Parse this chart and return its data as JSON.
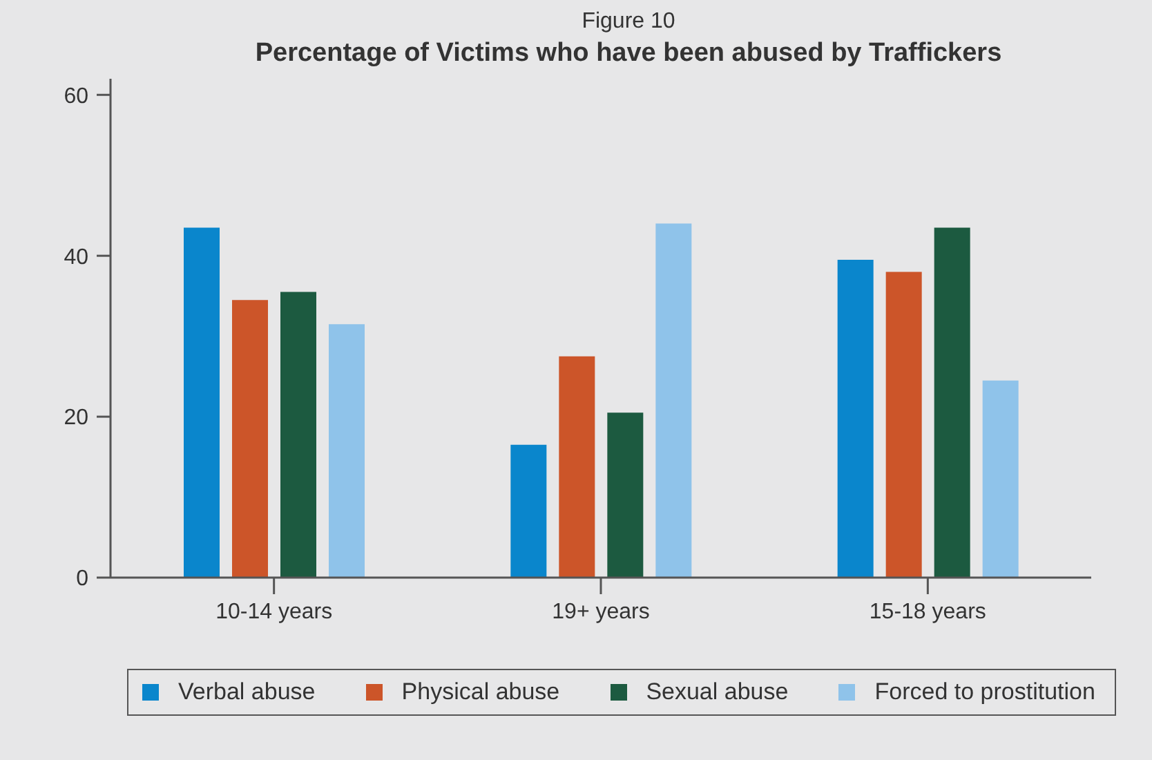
{
  "chart_data": {
    "type": "bar",
    "title": "Percentage of Victims who have been abused by Traffickers",
    "annotations": [
      "Figure 10"
    ],
    "categories": [
      "10-14 years",
      "19+ years",
      "15-18 years"
    ],
    "series": [
      {
        "name": "Verbal abuse",
        "color": "#0a86cc",
        "values": [
          43.5,
          16.5,
          39.5
        ]
      },
      {
        "name": "Physical abuse",
        "color": "#cc5529",
        "values": [
          34.5,
          27.5,
          38
        ]
      },
      {
        "name": "Sexual abuse",
        "color": "#1c5a40",
        "values": [
          35.5,
          20.5,
          43.5
        ]
      },
      {
        "name": "Forced to prostitution",
        "color": "#8fc3ea",
        "values": [
          31.5,
          44,
          24.5
        ]
      }
    ],
    "ylim": [
      0,
      62
    ],
    "yticks": [
      0,
      20,
      40,
      60
    ],
    "legend": "bottom"
  }
}
